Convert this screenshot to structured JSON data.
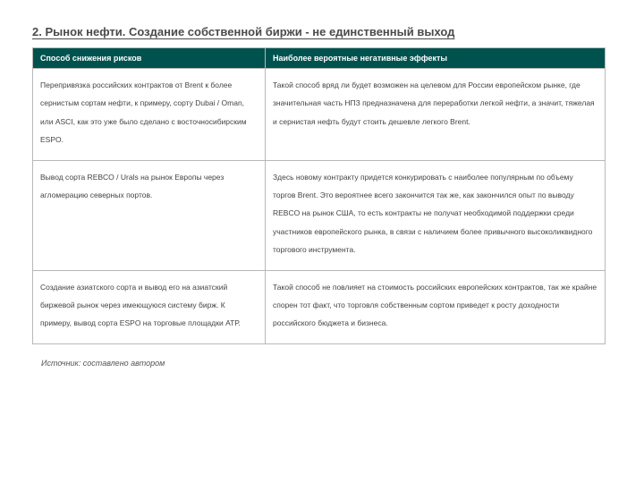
{
  "title": "2. Рынок нефти. Создание собственной биржи - не единственный выход",
  "table": {
    "header_bg": "#00524e",
    "header_fg": "#ffffff",
    "border_color": "#b8b8b8",
    "columns": [
      "Способ снижения рисков",
      "Наиболее вероятные негативные эффекты"
    ],
    "rows": [
      [
        "Перепривязка российских контрактов от Brent к более сернистым сортам нефти, к примеру, сорту Dubai / Oman, или ASCI, как это уже было сделано с восточносибирским ESPO.",
        "Такой способ вряд ли будет возможен на целевом для России европейском рынке, где значительная часть НПЗ предназначена для переработки легкой нефти, а значит, тяжелая и сернистая нефть будут стоить дешевле легкого Brent."
      ],
      [
        "Вывод сорта REBCO / Urals на рынок Европы через агломерацию северных портов.",
        "Здесь новому контракту придется конкурировать с наиболее популярным по объему торгов Brent. Это вероятнее всего закончится так же, как закончился опыт по выводу REBCO на рынок США, то есть контракты не получат необходимой поддержки среди участников европейского рынка, в связи с наличием более привычного высоколиквидного торгового инструмента."
      ],
      [
        "Создание азиатского сорта и вывод его на азиатский биржевой рынок через имеющуюся систему бирж. К примеру, вывод сорта ESPO на торговые площадки АТР.",
        "Такой способ не повлияет на стоимость российских европейских контрактов, так же крайне спорен тот факт, что торговля собственным сортом приведет к росту доходности российского бюджета и бизнеса."
      ]
    ]
  },
  "source": "Источник: составлено автором"
}
